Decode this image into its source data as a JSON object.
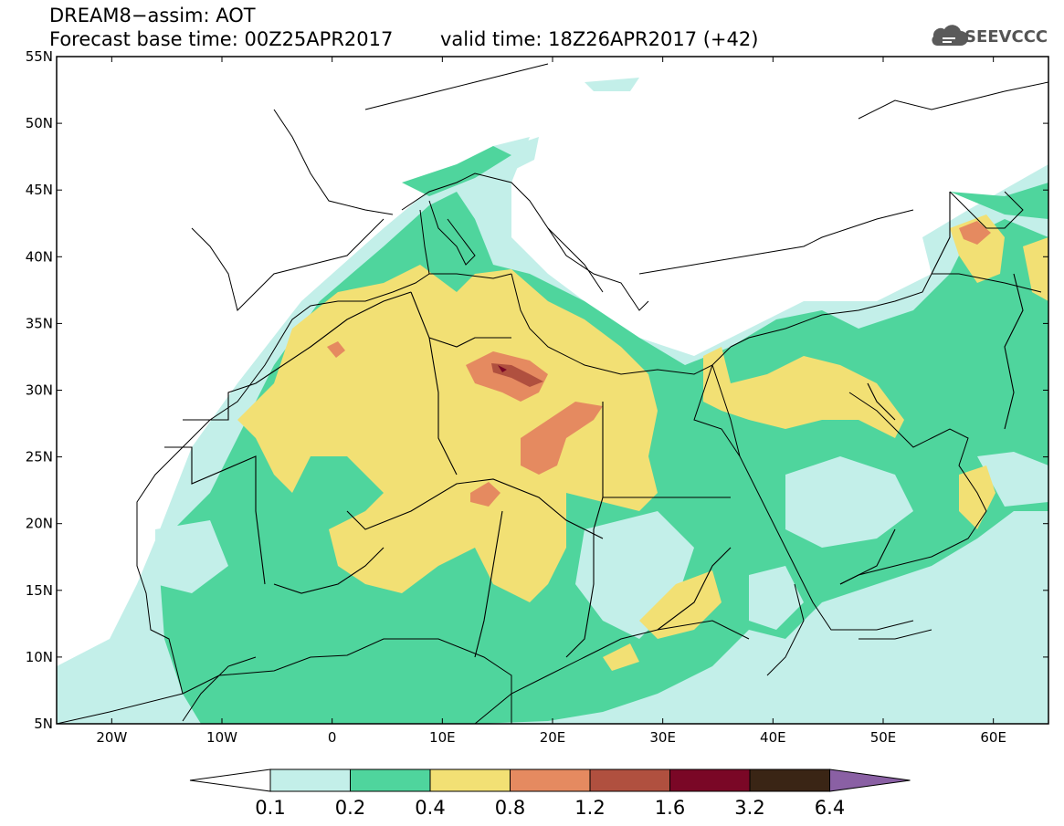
{
  "title": {
    "line1": "DREAM8−assim: AOT",
    "base_time": "Forecast base time: 00Z25APR2017",
    "valid_time": "valid time: 18Z26APR2017 (+42)"
  },
  "logo": {
    "text": "SEEVCCC",
    "icon": "cloud-icon"
  },
  "map": {
    "projection": "lat-lon",
    "lon_range": [
      -25,
      65
    ],
    "lat_range": [
      5,
      55
    ],
    "lat_ticks": [
      "5N",
      "10N",
      "15N",
      "20N",
      "25N",
      "30N",
      "35N",
      "40N",
      "45N",
      "50N",
      "55N"
    ],
    "lon_ticks": [
      "20W",
      "10W",
      "0",
      "10E",
      "20E",
      "30E",
      "40E",
      "50E",
      "60E"
    ]
  },
  "colorbar": {
    "levels": [
      "0.1",
      "0.2",
      "0.4",
      "0.8",
      "1.2",
      "1.6",
      "3.2",
      "6.4"
    ],
    "colors": [
      "#ffffff",
      "#c3efe9",
      "#4fd59d",
      "#f2e074",
      "#e58a60",
      "#b0503f",
      "#7a0726",
      "#3a2515",
      "#8a60a4"
    ]
  }
}
